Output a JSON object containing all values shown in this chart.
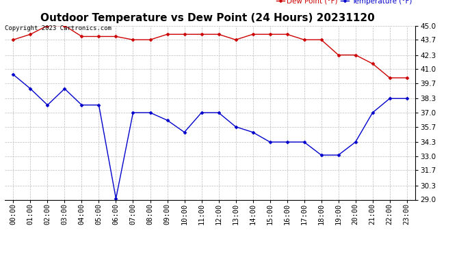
{
  "title": "Outdoor Temperature vs Dew Point (24 Hours) 20231120",
  "copyright": "Copyright 2023 Cartronics.com",
  "legend_dew": "Dew Point (°F)",
  "legend_temp": "Temperature (°F)",
  "hours": [
    "00:00",
    "01:00",
    "02:00",
    "03:00",
    "04:00",
    "05:00",
    "06:00",
    "07:00",
    "08:00",
    "09:00",
    "10:00",
    "11:00",
    "12:00",
    "13:00",
    "14:00",
    "15:00",
    "16:00",
    "17:00",
    "18:00",
    "19:00",
    "20:00",
    "21:00",
    "22:00",
    "23:00"
  ],
  "temperature": [
    40.5,
    39.2,
    37.7,
    39.2,
    37.7,
    37.7,
    29.1,
    37.0,
    37.0,
    36.3,
    35.2,
    37.0,
    37.0,
    35.7,
    35.2,
    34.3,
    34.3,
    34.3,
    33.1,
    33.1,
    34.3,
    37.0,
    38.3,
    38.3
  ],
  "dew_point": [
    43.7,
    44.2,
    45.0,
    45.0,
    44.0,
    44.0,
    44.0,
    43.7,
    43.7,
    44.2,
    44.2,
    44.2,
    44.2,
    43.7,
    44.2,
    44.2,
    44.2,
    43.7,
    43.7,
    42.3,
    42.3,
    41.5,
    40.2,
    40.2
  ],
  "temp_color": "#0000cc",
  "dew_color": "#cc0000",
  "ylim_min": 29.0,
  "ylim_max": 45.0,
  "yticks": [
    29.0,
    30.3,
    31.7,
    33.0,
    34.3,
    35.7,
    37.0,
    38.3,
    39.7,
    41.0,
    42.3,
    43.7,
    45.0
  ],
  "bg_color": "#ffffff",
  "grid_color": "#bbbbbb",
  "title_fontsize": 11,
  "axis_fontsize": 7.5,
  "copyright_fontsize": 6.5,
  "marker": "D",
  "marker_size": 2.5,
  "line_width": 1.0
}
